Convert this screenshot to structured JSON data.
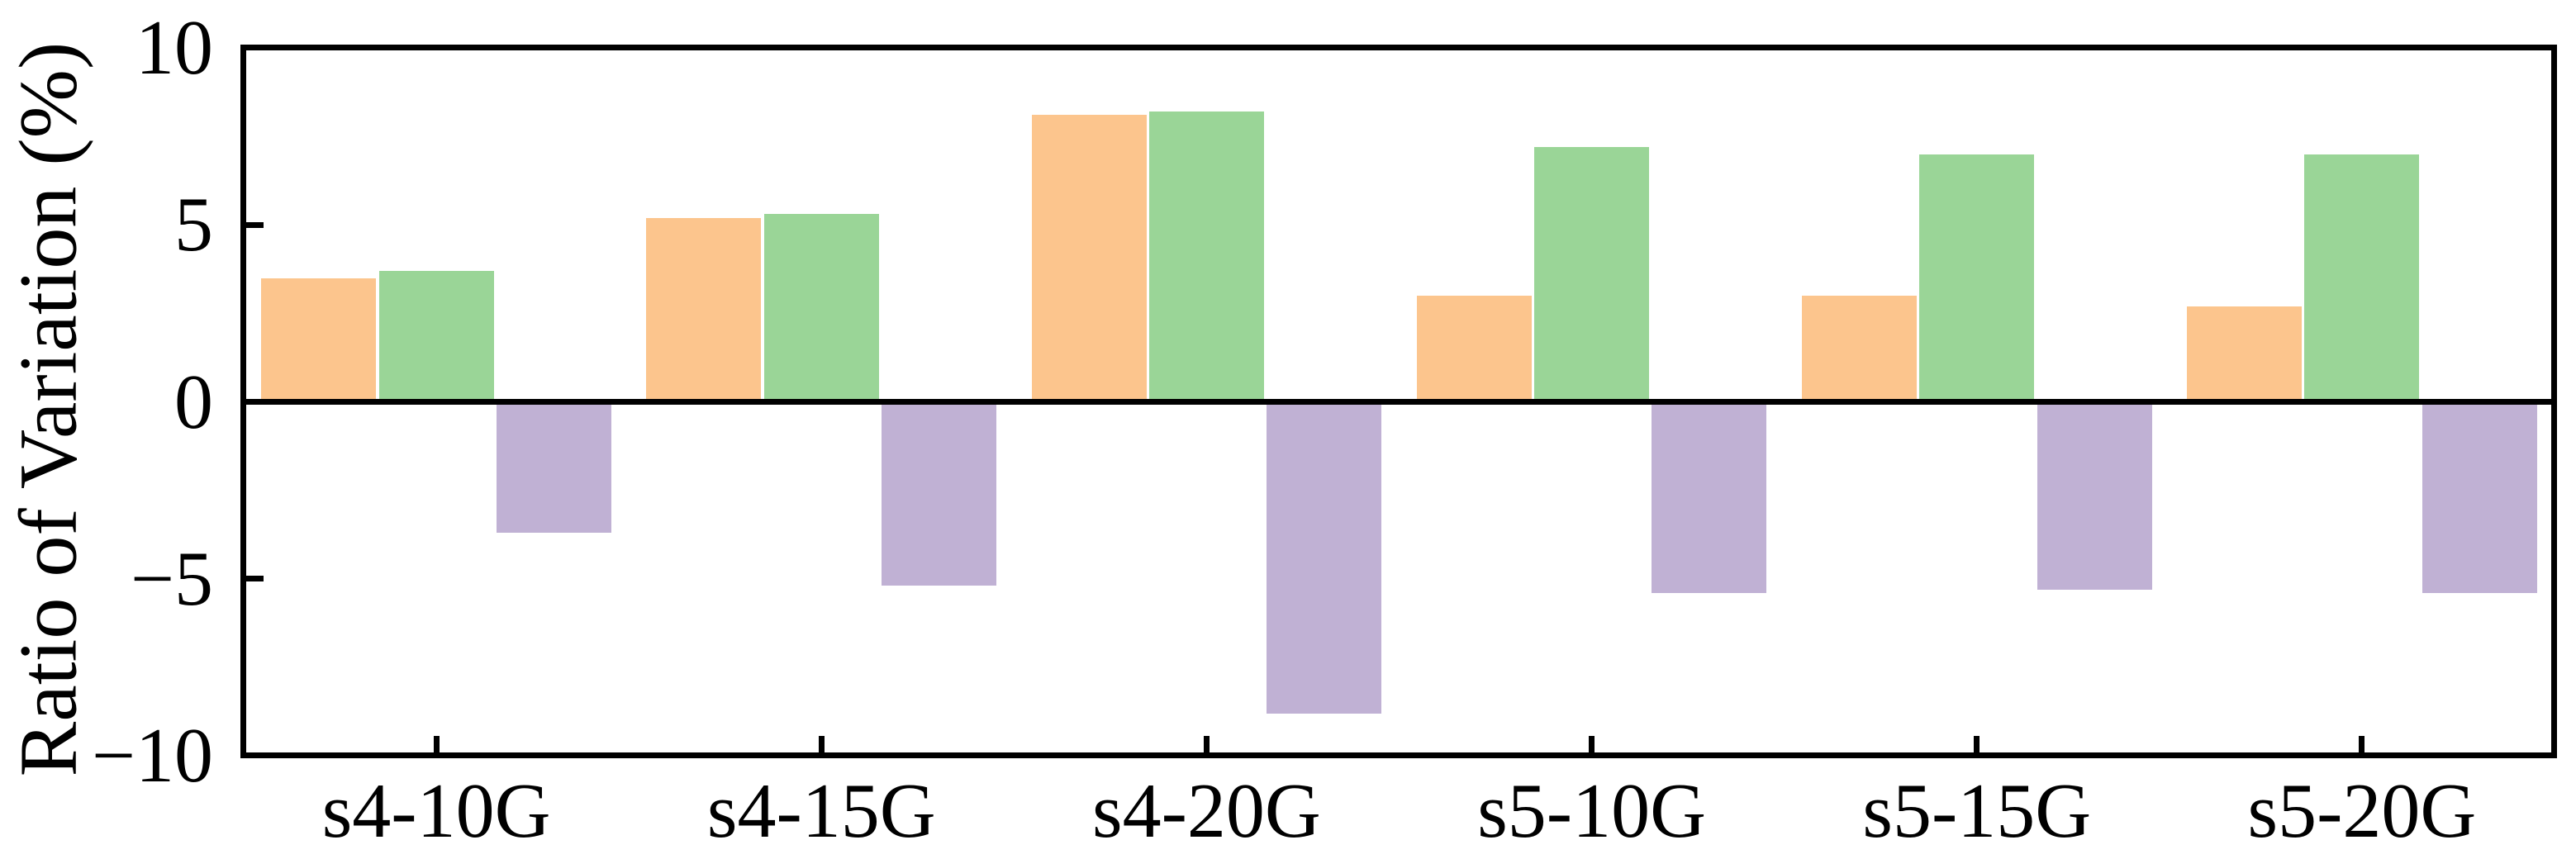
{
  "chart_data": {
    "type": "bar",
    "title": "",
    "xlabel": "",
    "ylabel": "Ratio of Variation (%)",
    "ylim": [
      -10,
      10
    ],
    "yticks": [
      {
        "value": 10,
        "label": "10"
      },
      {
        "value": 5,
        "label": "5"
      },
      {
        "value": 0,
        "label": "0"
      },
      {
        "value": -5,
        "label": "−5"
      },
      {
        "value": -10,
        "label": "−10"
      }
    ],
    "categories": [
      "s4-10G",
      "s4-15G",
      "s4-20G",
      "s5-10G",
      "s5-15G",
      "s5-20G"
    ],
    "series": [
      {
        "name": "orange",
        "color": "#FCC58D",
        "values": [
          3.5,
          5.2,
          8.1,
          3.0,
          3.0,
          2.7
        ]
      },
      {
        "name": "green",
        "color": "#9AD597",
        "values": [
          3.7,
          5.3,
          8.2,
          7.2,
          7.0,
          7.0
        ]
      },
      {
        "name": "purple",
        "color": "#C0B1D4",
        "values": [
          -3.7,
          -5.2,
          -8.8,
          -5.4,
          -5.3,
          -5.4
        ]
      }
    ],
    "legend": "none",
    "grid": false,
    "axis_color": "#000000",
    "background": "#FFFFFF"
  }
}
